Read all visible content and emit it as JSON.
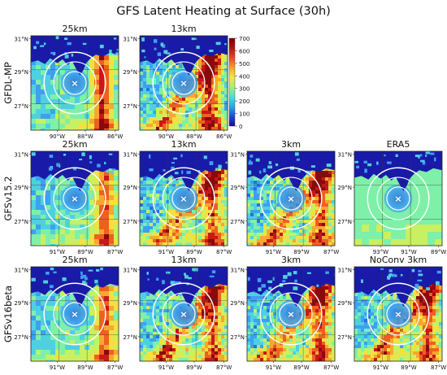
{
  "figure": {
    "title": "GFS Latent Heating at Surface (30h)"
  },
  "colorbar": {
    "ticks": [
      "700",
      "600",
      "500",
      "400",
      "300",
      "200",
      "100",
      "0"
    ],
    "colors": [
      "#1a0a8c",
      "#1f4bd8",
      "#2aa6f0",
      "#4fe0d0",
      "#a8f070",
      "#f6e64a",
      "#f7a030",
      "#e8491c",
      "#b11313",
      "#7a0000"
    ]
  },
  "rows": [
    {
      "label": "GFDL-MP",
      "panels": [
        {
          "title": "25km",
          "lat_ticks": [
            "31°N",
            "29°N",
            "27°N"
          ],
          "lon_ticks": [
            "90°W",
            "88°W",
            "86°W"
          ],
          "center_marker": "×"
        },
        {
          "title": "13km",
          "lat_ticks": [
            "31°N",
            "29°N",
            "27°N"
          ],
          "lon_ticks": [
            "90°W",
            "88°W",
            "86°W"
          ],
          "center_marker": "×"
        }
      ]
    },
    {
      "label": "GFSv15.2",
      "panels": [
        {
          "title": "25km",
          "lat_ticks": [
            "31°N",
            "29°N",
            "27°N"
          ],
          "lon_ticks": [
            "91°W",
            "89°W",
            "87°W"
          ],
          "center_marker": "×"
        },
        {
          "title": "13km",
          "lat_ticks": [
            "31°N",
            "29°N",
            "27°N"
          ],
          "lon_ticks": [
            "91°W",
            "89°W",
            "87°W"
          ],
          "center_marker": "×"
        },
        {
          "title": "3km",
          "lat_ticks": [
            "31°N",
            "29°N",
            "27°N"
          ],
          "lon_ticks": [
            "91°W",
            "89°W",
            "87°W"
          ],
          "center_marker": "×"
        },
        {
          "title": "ERA5",
          "lat_ticks": [
            "31°N",
            "29°N",
            "27°N"
          ],
          "lon_ticks": [
            "93°W",
            "91°W",
            "89°W"
          ],
          "center_marker": "×"
        }
      ]
    },
    {
      "label": "GFSv16beta",
      "panels": [
        {
          "title": "25km",
          "lat_ticks": [
            "31°N",
            "29°N",
            "27°N"
          ],
          "lon_ticks": [
            "91°W",
            "89°W",
            "87°W"
          ],
          "center_marker": "×"
        },
        {
          "title": "13km",
          "lat_ticks": [
            "31°N",
            "29°N",
            "27°N"
          ],
          "lon_ticks": [
            "91°W",
            "89°W",
            "87°W"
          ],
          "center_marker": "×"
        },
        {
          "title": "3km",
          "lat_ticks": [
            "31°N",
            "29°N",
            "27°N"
          ],
          "lon_ticks": [
            "91°W",
            "89°W",
            "87°W"
          ],
          "center_marker": "×"
        },
        {
          "title": "NoConv 3km",
          "lat_ticks": [
            "31°N",
            "29°N",
            "27°N"
          ],
          "lon_ticks": [
            "91°W",
            "89°W",
            "87°W"
          ],
          "center_marker": "×"
        }
      ]
    }
  ],
  "chart_data": {
    "type": "heatmap",
    "title": "GFS Latent Heating at Surface (30h)",
    "value_range": [
      0,
      700
    ],
    "colorbar_ticks": [
      700,
      600,
      500,
      400,
      300,
      200,
      100,
      0
    ],
    "panel_titles": [
      "25km",
      "13km",
      "25km",
      "13km",
      "3km",
      "ERA5",
      "25km",
      "13km",
      "3km",
      "NoConv 3km"
    ],
    "row_labels": [
      "GFDL-MP",
      "GFSv15.2",
      "GFSv16beta"
    ]
  }
}
